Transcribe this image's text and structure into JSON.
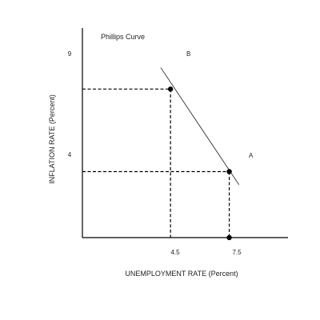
{
  "chart_data": {
    "type": "line",
    "title": "",
    "xlabel": "UNEMPLOYMENT RATE (Percent)",
    "ylabel": "INFLATION RATE (Percent)",
    "xlim": [
      0,
      10.5
    ],
    "ylim": [
      0,
      12.7
    ],
    "x_ticks": [
      "4.5",
      "7.5"
    ],
    "y_ticks": [
      "9",
      "4"
    ],
    "series": [
      {
        "name": "Phillips Curve",
        "line": [
          [
            4.0,
            10.3
          ],
          [
            8.0,
            3.2
          ]
        ],
        "color": "#444444"
      }
    ],
    "points": [
      {
        "label": "B",
        "x": 4.5,
        "y": 9
      },
      {
        "label": "A",
        "x": 7.5,
        "y": 4
      }
    ],
    "grid": false,
    "reference_lines": "dashed"
  }
}
